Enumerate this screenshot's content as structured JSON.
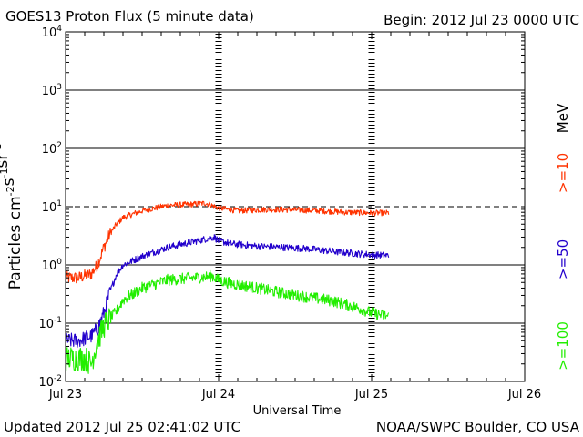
{
  "chart_data": {
    "type": "line",
    "title": "GOES13 Proton Flux (5 minute data)",
    "begin_label": "Begin: 2012 Jul 23 0000 UTC",
    "updated_label": "Updated 2012 Jul 25 02:41:02 UTC",
    "credit_label": "NOAA/SWPC Boulder, CO USA",
    "xlabel": "Universal Time",
    "ylabel": "Particles cm-2s-1sr-1",
    "y_scale": "log",
    "ylim": [
      0.01,
      10000
    ],
    "xlim_hours": [
      0,
      72
    ],
    "x_ticks": [
      {
        "hour": 0,
        "label": "Jul 23"
      },
      {
        "hour": 24,
        "label": "Jul 24"
      },
      {
        "hour": 48,
        "label": "Jul 25"
      },
      {
        "hour": 72,
        "label": "Jul 26"
      }
    ],
    "y_ticks": [
      {
        "exp": -2,
        "label": "10",
        "sup": "-2"
      },
      {
        "exp": -1,
        "label": "10",
        "sup": "-1"
      },
      {
        "exp": 0,
        "label": "10",
        "sup": "0"
      },
      {
        "exp": 1,
        "label": "10",
        "sup": "1"
      },
      {
        "exp": 2,
        "label": "10",
        "sup": "2"
      },
      {
        "exp": 3,
        "label": "10",
        "sup": "3"
      },
      {
        "exp": 4,
        "label": "10",
        "sup": "4"
      }
    ],
    "threshold": {
      "value": 10,
      "style": "dashed"
    },
    "legend_unit": "MeV",
    "series": [
      {
        "name": ">=10",
        "color": "#ff3300",
        "noise": 0.05,
        "points": [
          [
            0,
            0.6
          ],
          [
            2,
            0.6
          ],
          [
            4,
            0.7
          ],
          [
            5,
            1.0
          ],
          [
            6,
            2.0
          ],
          [
            7,
            3.5
          ],
          [
            8,
            5.0
          ],
          [
            9,
            6.5
          ],
          [
            12,
            8.5
          ],
          [
            16,
            10.5
          ],
          [
            20,
            11.0
          ],
          [
            22,
            11.5
          ],
          [
            24,
            9.5
          ],
          [
            27,
            8.5
          ],
          [
            32,
            9.0
          ],
          [
            36,
            8.8
          ],
          [
            40,
            8.5
          ],
          [
            44,
            8.0
          ],
          [
            48,
            7.8
          ],
          [
            50.7,
            7.8
          ]
        ]
      },
      {
        "name": ">=50",
        "color": "#2200cc",
        "noise": 0.06,
        "points": [
          [
            0,
            0.05
          ],
          [
            2,
            0.05
          ],
          [
            4,
            0.06
          ],
          [
            5,
            0.08
          ],
          [
            6,
            0.15
          ],
          [
            7,
            0.35
          ],
          [
            8,
            0.7
          ],
          [
            9,
            1.0
          ],
          [
            12,
            1.4
          ],
          [
            16,
            2.0
          ],
          [
            20,
            2.5
          ],
          [
            22,
            2.8
          ],
          [
            23.3,
            3.0
          ],
          [
            24,
            2.6
          ],
          [
            26,
            2.3
          ],
          [
            30,
            2.1
          ],
          [
            34,
            2.0
          ],
          [
            38,
            1.9
          ],
          [
            42,
            1.7
          ],
          [
            46,
            1.55
          ],
          [
            48,
            1.5
          ],
          [
            50.7,
            1.45
          ]
        ]
      },
      {
        "name": ">=100",
        "color": "#22ee00",
        "noise": 0.1,
        "points": [
          [
            0,
            0.025
          ],
          [
            3,
            0.025
          ],
          [
            4,
            0.02
          ],
          [
            5,
            0.05
          ],
          [
            6,
            0.09
          ],
          [
            8,
            0.16
          ],
          [
            9,
            0.25
          ],
          [
            12,
            0.4
          ],
          [
            16,
            0.55
          ],
          [
            20,
            0.6
          ],
          [
            22,
            0.62
          ],
          [
            23,
            0.65
          ],
          [
            24,
            0.55
          ],
          [
            26,
            0.48
          ],
          [
            30,
            0.4
          ],
          [
            34,
            0.33
          ],
          [
            38,
            0.28
          ],
          [
            42,
            0.24
          ],
          [
            46,
            0.18
          ],
          [
            48,
            0.15
          ],
          [
            50.7,
            0.13
          ]
        ]
      }
    ]
  }
}
